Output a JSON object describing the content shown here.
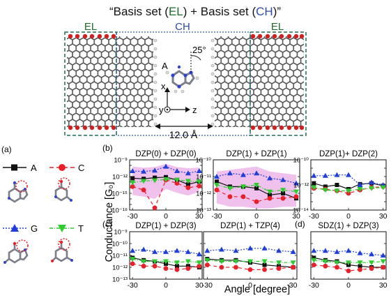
{
  "figure": {
    "title_parts": [
      "“Basis set (",
      "EL",
      ") + Basis set (",
      "CH",
      ")”"
    ],
    "top_panel": {
      "el_left": "EL",
      "ch": "CH",
      "el_right": "EL",
      "angle": "25°",
      "base_label": "A",
      "axis_x": "x",
      "axis_y": "y",
      "axis_z": "z",
      "gap": "12.0 Å"
    },
    "legend": {
      "label": "(a)",
      "items": [
        {
          "name": "A",
          "color": "#111111",
          "marker": "square",
          "dash": "solid"
        },
        {
          "name": "C",
          "color": "#e8202a",
          "marker": "circle",
          "dash": "dash"
        },
        {
          "name": "G",
          "color": "#1f3fd6",
          "marker": "triangle-up",
          "dash": "dot"
        },
        {
          "name": "T",
          "color": "#2ecc2e",
          "marker": "triangle-down",
          "dash": "dashdot"
        }
      ]
    },
    "ylabel": "Conductance [G₀]",
    "xlabel": "Angle [degree]",
    "colors": {
      "A": "#111111",
      "C": "#e8202a",
      "G": "#1f3fd6",
      "T": "#2ecc2e",
      "band": "#e9a6e4",
      "frame_green": "#1f6b4a",
      "frame_blue": "#3355aa",
      "el_text": "#1f6b2a",
      "ch_text": "#2e4aa6"
    }
  },
  "chart_data": [
    {
      "type": "line",
      "panel_label": "(b)",
      "title": "DZP(0) + DZP(0)",
      "x": [
        -30,
        -20,
        -10,
        0,
        10,
        20,
        30
      ],
      "yscale": "log",
      "ylim_exp": [
        -18,
        -9
      ],
      "ytick_labels": [
        "10⁻⁹",
        "10⁻¹²",
        "10⁻¹⁵",
        "10⁻¹⁸"
      ],
      "xtick_labels": [
        "-30",
        "0",
        "30"
      ],
      "series_log10": {
        "A": [
          -12.3,
          -12.4,
          -12.2,
          -12.1,
          -12.6,
          -13.4,
          -12.9
        ],
        "C": [
          -13.8,
          -14.4,
          -17.6,
          -12.6,
          -13.2,
          -14.0,
          -13.7
        ],
        "G": [
          -11.0,
          -11.1,
          -10.9,
          -10.2,
          -11.0,
          -11.4,
          -11.0
        ],
        "T": [
          -13.1,
          -12.8,
          -12.7,
          -12.5,
          -12.6,
          -12.8,
          -12.9
        ]
      },
      "band_log10": {
        "lo": [
          -15.3,
          -15.6,
          -16.0,
          -14.2,
          -14.9,
          -15.4,
          -14.7
        ],
        "hi": [
          -10.2,
          -10.4,
          -10.3,
          -9.7,
          -10.3,
          -10.5,
          -10.4
        ]
      }
    },
    {
      "type": "line",
      "panel_label": "",
      "title": "DZP(1) + DZP(1)",
      "x": [
        -30,
        -20,
        -10,
        0,
        10,
        20,
        30
      ],
      "yscale": "log",
      "ylim_exp": [
        -13,
        -10
      ],
      "ytick_labels": [
        "10⁻¹⁰",
        "10⁻¹¹",
        "10⁻¹²",
        "10⁻¹³"
      ],
      "xtick_labels": [
        "-30",
        "0",
        "30"
      ],
      "series_log10": {
        "A": [
          -11.3,
          -11.6,
          -11.6,
          -11.7,
          -12.1,
          -12.0,
          -12.3
        ],
        "C": [
          -11.8,
          -12.2,
          -12.2,
          -12.5,
          -12.3,
          -12.3,
          -12.2
        ],
        "G": [
          -11.0,
          -10.8,
          -10.9,
          -10.8,
          -11.1,
          -11.2,
          -11.4
        ],
        "T": [
          -11.5,
          -11.7,
          -11.6,
          -11.5,
          -11.9,
          -11.8,
          -11.9
        ]
      },
      "band_log10": {
        "lo": [
          -12.6,
          -12.8,
          -12.8,
          -12.9,
          -12.9,
          -12.8,
          -12.8
        ],
        "hi": [
          -10.7,
          -10.6,
          -10.5,
          -10.4,
          -10.7,
          -10.8,
          -10.9
        ]
      }
    },
    {
      "type": "line",
      "panel_label": "",
      "title": "DZP(1)+ DZP(2)",
      "x": [
        -30,
        -20,
        -10,
        0,
        10,
        20,
        30
      ],
      "yscale": "log",
      "ylim_exp": [
        -15,
        -9
      ],
      "ytick_labels": [
        "10⁻¹⁰",
        "10⁻¹²",
        "10⁻¹⁴"
      ],
      "xtick_labels": [
        "-30",
        "0",
        "30"
      ],
      "series_log10": {
        "A": [
          -11.8,
          -12.2,
          -12.0,
          -12.5,
          -11.9,
          -11.8,
          -12.1
        ],
        "C": [
          -12.4,
          -12.5,
          -12.7,
          -13.0,
          -12.6,
          -12.3,
          -12.2
        ],
        "G": [
          -10.9,
          -10.9,
          -10.8,
          -10.8,
          -12.0,
          -11.7,
          -12.0
        ],
        "T": [
          -12.3,
          -12.6,
          -12.7,
          -12.7,
          -12.5,
          -12.4,
          -12.3
        ]
      }
    },
    {
      "type": "line",
      "panel_label": "(c)",
      "title": "DZP(1) + DZP(3)",
      "x": [
        -30,
        -20,
        -10,
        0,
        10,
        20,
        30
      ],
      "yscale": "log",
      "ylim_exp": [
        -13,
        -9
      ],
      "ytick_labels": [
        "10⁻⁹",
        "10⁻¹⁰",
        "10⁻¹¹",
        "10⁻¹²",
        "10⁻¹³"
      ],
      "xtick_labels": [
        "-30",
        "0",
        "30"
      ],
      "series_log10": {
        "A": [
          -11.2,
          -11.4,
          -11.5,
          -11.7,
          -11.9,
          -11.9,
          -12.0
        ],
        "C": [
          -11.7,
          -11.9,
          -11.9,
          -12.1,
          -12.2,
          -12.1,
          -11.9
        ],
        "G": [
          -10.6,
          -10.5,
          -10.7,
          -10.7,
          -10.6,
          -10.7,
          -10.9
        ],
        "T": [
          -11.3,
          -11.5,
          -11.5,
          -11.5,
          -11.6,
          -11.5,
          -11.6
        ]
      }
    },
    {
      "type": "line",
      "panel_label": "",
      "title": "DZP(1) + TZP(4)",
      "x": [
        -30,
        -20,
        -10,
        0,
        10,
        20,
        30
      ],
      "yscale": "log",
      "ylim_exp": [
        -13,
        -9
      ],
      "ytick_labels": [],
      "xtick_labels": [
        "-30",
        "0",
        "30"
      ],
      "series_log10": {
        "A": [
          -11.3,
          -11.4,
          -11.4,
          -11.6,
          -11.8,
          -11.9,
          -12.0
        ],
        "C": [
          -11.8,
          -12.0,
          -12.0,
          -12.2,
          -12.2,
          -12.1,
          -12.0
        ],
        "G": [
          -10.6,
          -10.5,
          -10.6,
          -10.4,
          -10.4,
          -10.6,
          -10.7
        ],
        "T": [
          -11.4,
          -11.5,
          -11.5,
          -11.5,
          -11.5,
          -11.6,
          -11.6
        ]
      }
    },
    {
      "type": "line",
      "panel_label": "(d)",
      "title": "SDZ(1) + DZP(3)",
      "x": [
        -30,
        -20,
        -10,
        0,
        10,
        20,
        30
      ],
      "yscale": "log",
      "ylim_exp": [
        -13,
        -9
      ],
      "ytick_labels": [],
      "xtick_labels": [
        "-30",
        "0",
        "30"
      ],
      "series_log10": {
        "A": [
          -11.2,
          -11.4,
          -11.5,
          -11.8,
          -11.9,
          -12.0,
          -12.0
        ],
        "C": [
          -11.8,
          -11.9,
          -12.0,
          -12.3,
          -12.2,
          -12.1,
          -12.0
        ],
        "G": [
          -10.6,
          -10.6,
          -10.7,
          -10.6,
          -10.8,
          -10.9,
          -11.0
        ],
        "T": [
          -11.4,
          -11.5,
          -11.6,
          -11.6,
          -11.6,
          -11.6,
          -11.5
        ]
      }
    }
  ]
}
